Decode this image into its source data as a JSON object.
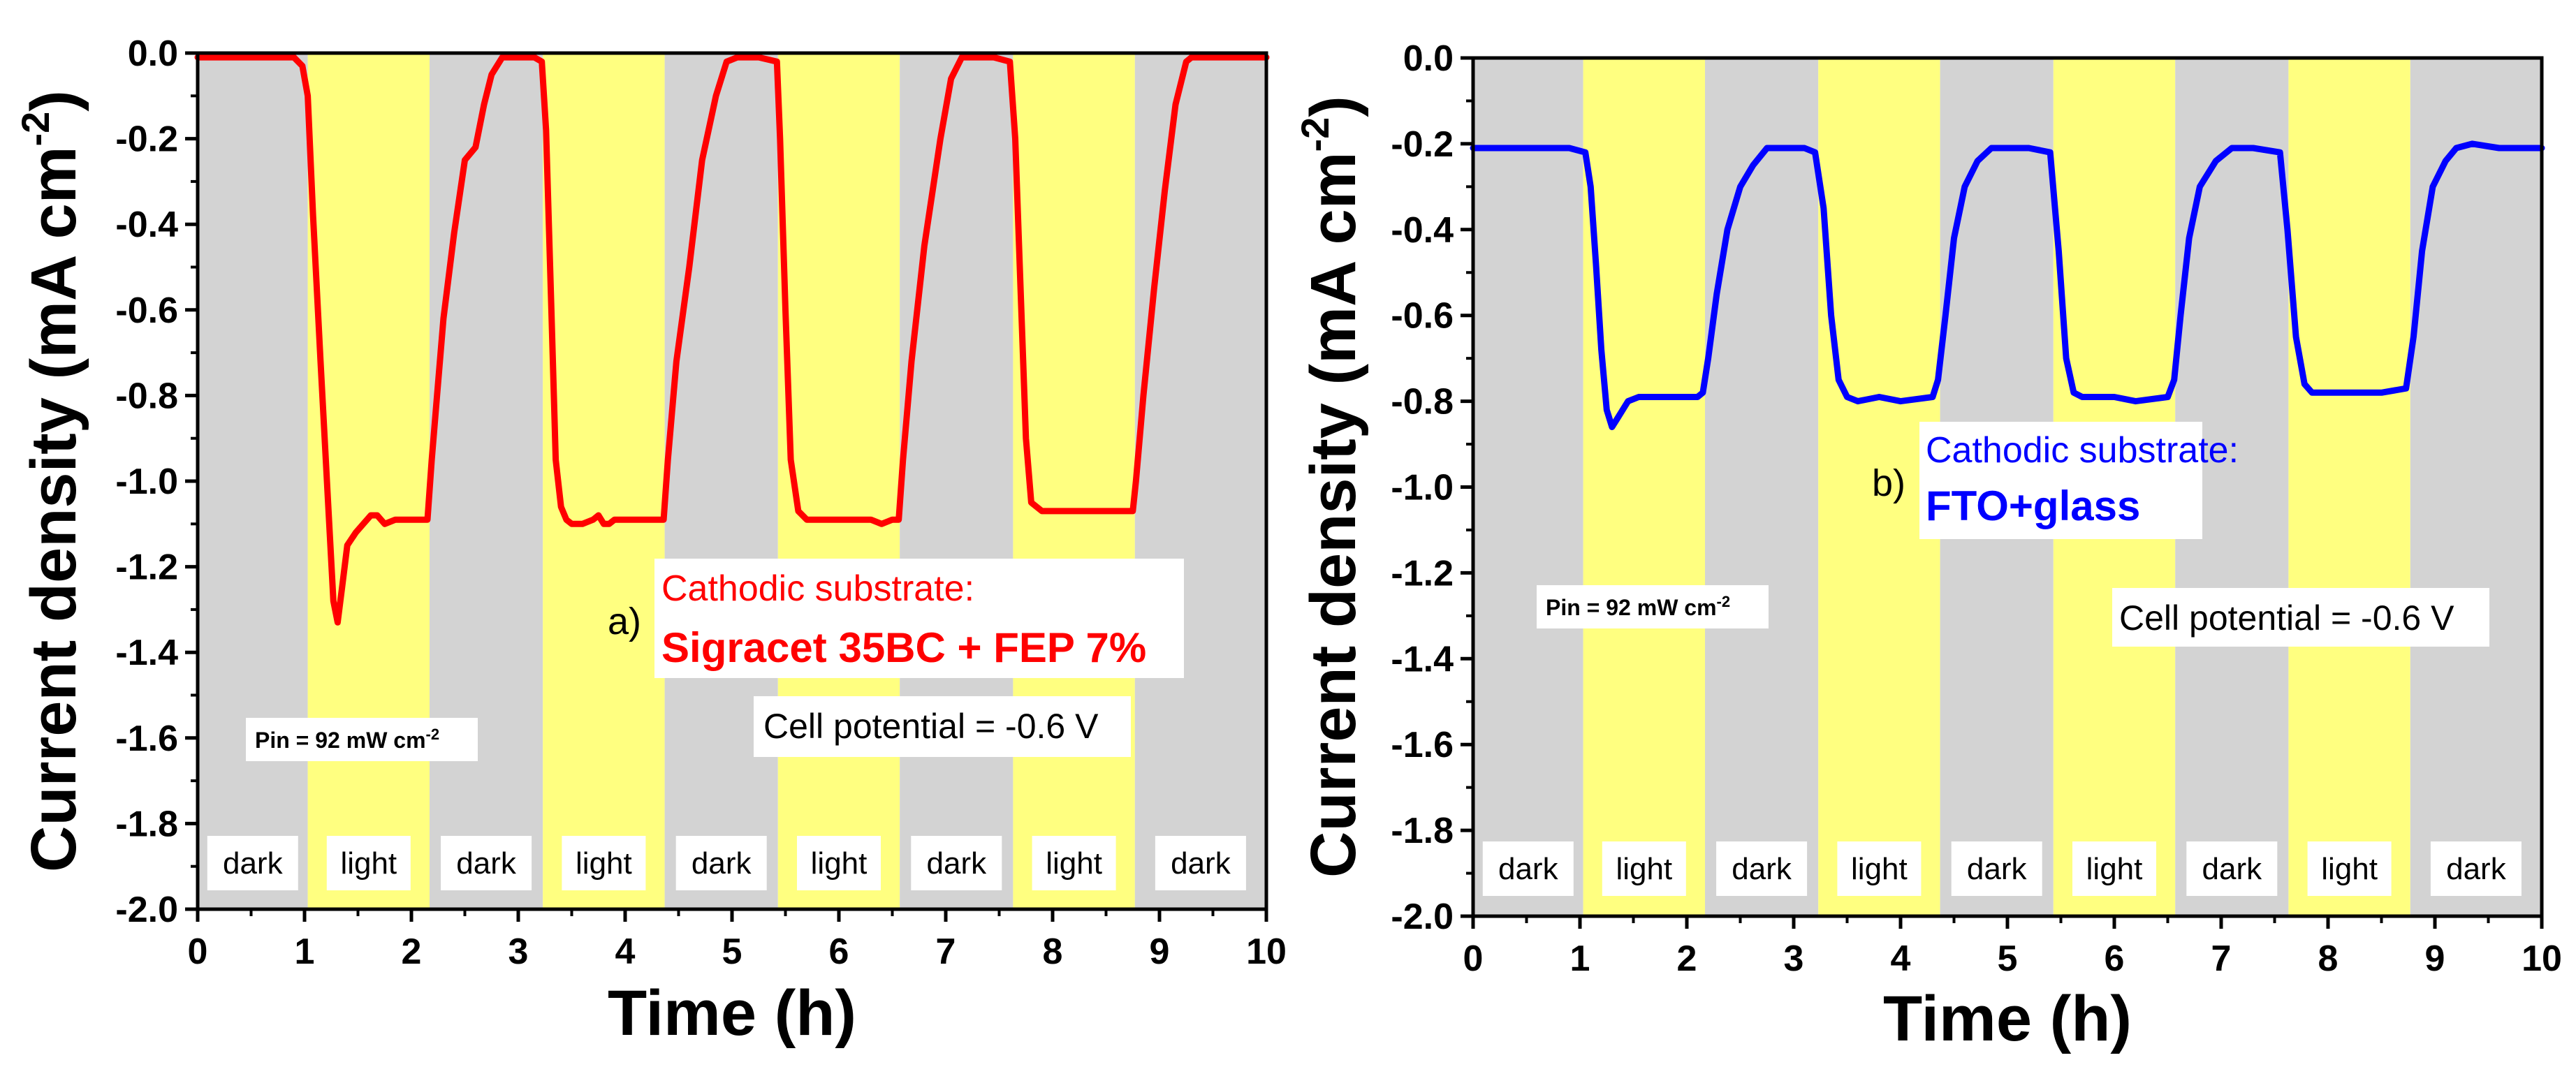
{
  "chart_data": [
    {
      "type": "line",
      "panel": "a",
      "panel_label": "a)",
      "xlabel": "Time (h)",
      "ylabel_main": "Current density (mA cm",
      "ylabel_sup": "-2",
      "ylabel_close": ")",
      "xlim": [
        0,
        10
      ],
      "ylim": [
        -2.0,
        0.0
      ],
      "xticks": [
        "0",
        "1",
        "2",
        "3",
        "4",
        "5",
        "6",
        "7",
        "8",
        "9",
        "10"
      ],
      "yticks": [
        "0.0",
        "-0.2",
        "-0.4",
        "-0.6",
        "-0.8",
        "-1.0",
        "-1.2",
        "-1.4",
        "-1.6",
        "-1.8",
        "-2.0"
      ],
      "color": "#ff0000",
      "regions": [
        {
          "label": "dark",
          "start": 0.0,
          "end": 1.03
        },
        {
          "label": "light",
          "start": 1.03,
          "end": 2.17
        },
        {
          "label": "dark",
          "start": 2.17,
          "end": 3.23
        },
        {
          "label": "light",
          "start": 3.23,
          "end": 4.37
        },
        {
          "label": "dark",
          "start": 4.37,
          "end": 5.43
        },
        {
          "label": "light",
          "start": 5.43,
          "end": 6.57
        },
        {
          "label": "dark",
          "start": 6.57,
          "end": 7.63
        },
        {
          "label": "light",
          "start": 7.63,
          "end": 8.77
        },
        {
          "label": "dark",
          "start": 8.77,
          "end": 10.0
        }
      ],
      "series": [
        {
          "name": "Sigracet 35BC + FEP 7%",
          "x": [
            0,
            0.3,
            0.6,
            0.9,
            0.98,
            1.03,
            1.08,
            1.15,
            1.22,
            1.27,
            1.31,
            1.35,
            1.4,
            1.48,
            1.55,
            1.62,
            1.68,
            1.75,
            1.85,
            1.95,
            2.05,
            2.15,
            2.19,
            2.24,
            2.3,
            2.4,
            2.5,
            2.6,
            2.68,
            2.75,
            2.85,
            3.0,
            3.15,
            3.22,
            3.26,
            3.31,
            3.35,
            3.4,
            3.45,
            3.5,
            3.6,
            3.7,
            3.75,
            3.8,
            3.85,
            3.9,
            4.0,
            4.1,
            4.2,
            4.3,
            4.36,
            4.4,
            4.48,
            4.6,
            4.72,
            4.85,
            4.95,
            5.05,
            5.25,
            5.42,
            5.45,
            5.5,
            5.55,
            5.62,
            5.7,
            5.8,
            5.95,
            6.1,
            6.2,
            6.3,
            6.4,
            6.5,
            6.56,
            6.6,
            6.68,
            6.8,
            6.95,
            7.05,
            7.15,
            7.3,
            7.45,
            7.6,
            7.65,
            7.7,
            7.75,
            7.8,
            7.9,
            8.0,
            8.2,
            8.4,
            8.6,
            8.75,
            8.78,
            8.85,
            8.95,
            9.05,
            9.15,
            9.25,
            9.3,
            9.5,
            9.7,
            10.0
          ],
          "values": [
            -0.01,
            -0.01,
            -0.01,
            -0.01,
            -0.03,
            -0.1,
            -0.38,
            -0.72,
            -1.05,
            -1.28,
            -1.33,
            -1.25,
            -1.15,
            -1.12,
            -1.1,
            -1.08,
            -1.08,
            -1.1,
            -1.09,
            -1.09,
            -1.09,
            -1.09,
            -0.95,
            -0.8,
            -0.62,
            -0.42,
            -0.25,
            -0.22,
            -0.12,
            -0.05,
            -0.01,
            -0.01,
            -0.01,
            -0.02,
            -0.18,
            -0.6,
            -0.95,
            -1.06,
            -1.09,
            -1.1,
            -1.1,
            -1.09,
            -1.08,
            -1.1,
            -1.1,
            -1.09,
            -1.09,
            -1.09,
            -1.09,
            -1.09,
            -1.09,
            -0.95,
            -0.72,
            -0.5,
            -0.25,
            -0.1,
            -0.02,
            -0.01,
            -0.01,
            -0.02,
            -0.2,
            -0.6,
            -0.95,
            -1.07,
            -1.09,
            -1.09,
            -1.09,
            -1.09,
            -1.09,
            -1.09,
            -1.1,
            -1.09,
            -1.09,
            -0.95,
            -0.72,
            -0.45,
            -0.2,
            -0.06,
            -0.01,
            -0.01,
            -0.01,
            -0.02,
            -0.2,
            -0.55,
            -0.9,
            -1.05,
            -1.07,
            -1.07,
            -1.07,
            -1.07,
            -1.07,
            -1.07,
            -1.0,
            -0.8,
            -0.55,
            -0.32,
            -0.12,
            -0.02,
            -0.01,
            -0.01,
            -0.01,
            -0.01
          ]
        }
      ],
      "annotations": {
        "substrate_title": "Cathodic substrate:",
        "substrate_name": "Sigracet 35BC + FEP 7%",
        "cell_potential": "Cell potential = -0.6 V",
        "pin_main": "Pin = 92 mW cm",
        "pin_sup": "-2"
      }
    },
    {
      "type": "line",
      "panel": "b",
      "panel_label": "b)",
      "xlabel": "Time (h)",
      "ylabel_main": "Current density (mA cm",
      "ylabel_sup": "-2",
      "ylabel_close": ")",
      "xlim": [
        0,
        10
      ],
      "ylim": [
        -2.0,
        0.0
      ],
      "xticks": [
        "0",
        "1",
        "2",
        "3",
        "4",
        "5",
        "6",
        "7",
        "8",
        "9",
        "10"
      ],
      "yticks": [
        "0.0",
        "-0.2",
        "-0.4",
        "-0.6",
        "-0.8",
        "-1.0",
        "-1.2",
        "-1.4",
        "-1.6",
        "-1.8",
        "-2.0"
      ],
      "color": "#0000ff",
      "regions": [
        {
          "label": "dark",
          "start": 0.0,
          "end": 1.03
        },
        {
          "label": "light",
          "start": 1.03,
          "end": 2.17
        },
        {
          "label": "dark",
          "start": 2.17,
          "end": 3.23
        },
        {
          "label": "light",
          "start": 3.23,
          "end": 4.37
        },
        {
          "label": "dark",
          "start": 4.37,
          "end": 5.43
        },
        {
          "label": "light",
          "start": 5.43,
          "end": 6.57
        },
        {
          "label": "dark",
          "start": 6.57,
          "end": 7.63
        },
        {
          "label": "light",
          "start": 7.63,
          "end": 8.77
        },
        {
          "label": "dark",
          "start": 8.77,
          "end": 10.0
        }
      ],
      "series": [
        {
          "name": "FTO+glass",
          "x": [
            0,
            0.3,
            0.6,
            0.9,
            1.05,
            1.1,
            1.15,
            1.2,
            1.25,
            1.3,
            1.35,
            1.45,
            1.55,
            1.7,
            1.9,
            2.1,
            2.15,
            2.2,
            2.28,
            2.38,
            2.5,
            2.62,
            2.75,
            2.9,
            3.1,
            3.2,
            3.28,
            3.35,
            3.42,
            3.5,
            3.6,
            3.8,
            4.0,
            4.3,
            4.35,
            4.42,
            4.5,
            4.6,
            4.72,
            4.85,
            5.0,
            5.2,
            5.4,
            5.48,
            5.55,
            5.62,
            5.7,
            5.8,
            6.0,
            6.2,
            6.5,
            6.56,
            6.62,
            6.7,
            6.8,
            6.95,
            7.1,
            7.3,
            7.55,
            7.62,
            7.7,
            7.78,
            7.85,
            7.95,
            8.2,
            8.5,
            8.73,
            8.8,
            8.88,
            8.98,
            9.1,
            9.2,
            9.35,
            9.6,
            10.0
          ],
          "values": [
            -0.21,
            -0.21,
            -0.21,
            -0.21,
            -0.22,
            -0.3,
            -0.48,
            -0.68,
            -0.82,
            -0.86,
            -0.84,
            -0.8,
            -0.79,
            -0.79,
            -0.79,
            -0.79,
            -0.78,
            -0.7,
            -0.55,
            -0.4,
            -0.3,
            -0.25,
            -0.21,
            -0.21,
            -0.21,
            -0.22,
            -0.35,
            -0.6,
            -0.75,
            -0.79,
            -0.8,
            -0.79,
            -0.8,
            -0.79,
            -0.75,
            -0.6,
            -0.42,
            -0.3,
            -0.24,
            -0.21,
            -0.21,
            -0.21,
            -0.22,
            -0.45,
            -0.7,
            -0.78,
            -0.79,
            -0.79,
            -0.79,
            -0.8,
            -0.79,
            -0.75,
            -0.6,
            -0.42,
            -0.3,
            -0.24,
            -0.21,
            -0.21,
            -0.22,
            -0.4,
            -0.65,
            -0.76,
            -0.78,
            -0.78,
            -0.78,
            -0.78,
            -0.77,
            -0.65,
            -0.45,
            -0.3,
            -0.24,
            -0.21,
            -0.2,
            -0.21,
            -0.21
          ]
        }
      ],
      "annotations": {
        "substrate_title": "Cathodic substrate:",
        "substrate_name": "FTO+glass",
        "cell_potential": "Cell potential = -0.6 V",
        "pin_main": "Pin = 92 mW cm",
        "pin_sup": "-2"
      }
    }
  ]
}
